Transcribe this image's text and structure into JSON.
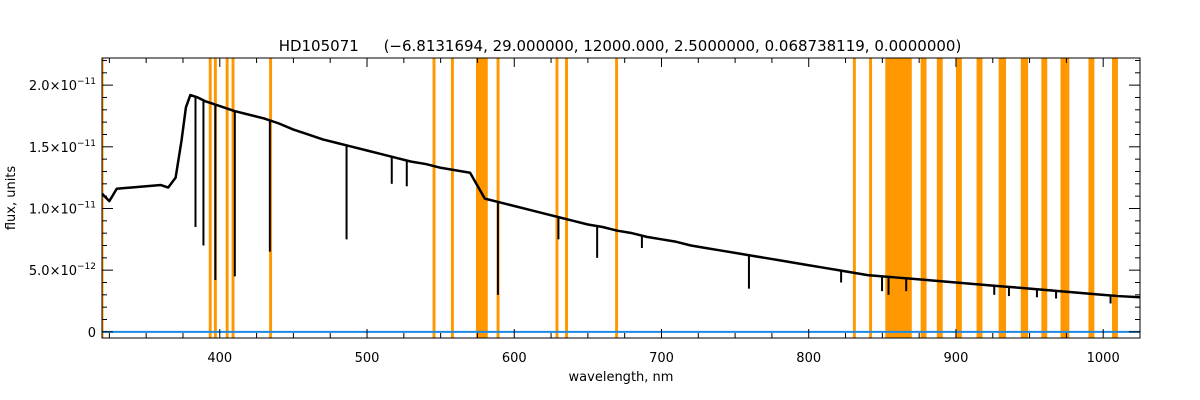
{
  "chart_data": {
    "type": "line",
    "title_star": "HD105071",
    "title_params": "(−6.8131694, 29.000000, 12000.000, 2.5000000, 0.068738119, 0.0000000)",
    "xlabel": "wavelength, nm",
    "ylabel": "flux, units",
    "xlim": [
      320,
      1025
    ],
    "ylim": [
      -5e-13,
      2.22e-11
    ],
    "x_ticks": [
      {
        "value": 400,
        "label": "400"
      },
      {
        "value": 500,
        "label": "500"
      },
      {
        "value": 600,
        "label": "600"
      },
      {
        "value": 700,
        "label": "700"
      },
      {
        "value": 800,
        "label": "800"
      },
      {
        "value": 900,
        "label": "900"
      },
      {
        "value": 1000,
        "label": "1000"
      }
    ],
    "y_ticks": [
      {
        "value": 0,
        "mant": "0",
        "exp": ""
      },
      {
        "value": 5e-12,
        "mant": "5.0×10",
        "exp": "−12"
      },
      {
        "value": 1e-11,
        "mant": "1.0×10",
        "exp": "−11"
      },
      {
        "value": 1.5e-11,
        "mant": "1.5×10",
        "exp": "−11"
      },
      {
        "value": 2e-11,
        "mant": "2.0×10",
        "exp": "−11"
      }
    ],
    "grid": false,
    "colors": {
      "spectrum": "#000000",
      "error": "#1e88e5",
      "mask": "#ff9800"
    },
    "series": [
      {
        "role": "spectrum",
        "points": [
          [
            320,
            1.12e-11
          ],
          [
            325,
            1.06e-11
          ],
          [
            330,
            1.16e-11
          ],
          [
            340,
            1.17e-11
          ],
          [
            350,
            1.18e-11
          ],
          [
            360,
            1.19e-11
          ],
          [
            365,
            1.17e-11
          ],
          [
            370,
            1.25e-11
          ],
          [
            374,
            1.55e-11
          ],
          [
            377,
            1.82e-11
          ],
          [
            380,
            1.92e-11
          ],
          [
            385,
            1.9e-11
          ],
          [
            390,
            1.87e-11
          ],
          [
            400,
            1.83e-11
          ],
          [
            410,
            1.79e-11
          ],
          [
            420,
            1.76e-11
          ],
          [
            430,
            1.73e-11
          ],
          [
            440,
            1.69e-11
          ],
          [
            450,
            1.64e-11
          ],
          [
            460,
            1.6e-11
          ],
          [
            470,
            1.56e-11
          ],
          [
            480,
            1.53e-11
          ],
          [
            490,
            1.5e-11
          ],
          [
            500,
            1.47e-11
          ],
          [
            510,
            1.44e-11
          ],
          [
            520,
            1.41e-11
          ],
          [
            530,
            1.38e-11
          ],
          [
            540,
            1.36e-11
          ],
          [
            550,
            1.33e-11
          ],
          [
            560,
            1.31e-11
          ],
          [
            570,
            1.29e-11
          ],
          [
            580,
            1.08e-11
          ],
          [
            590,
            1.05e-11
          ],
          [
            600,
            1.02e-11
          ],
          [
            610,
            9.9e-12
          ],
          [
            620,
            9.6e-12
          ],
          [
            630,
            9.3e-12
          ],
          [
            640,
            9e-12
          ],
          [
            650,
            8.7e-12
          ],
          [
            660,
            8.5e-12
          ],
          [
            670,
            8.2e-12
          ],
          [
            680,
            8e-12
          ],
          [
            690,
            7.7e-12
          ],
          [
            700,
            7.5e-12
          ],
          [
            710,
            7.3e-12
          ],
          [
            720,
            7e-12
          ],
          [
            730,
            6.8e-12
          ],
          [
            740,
            6.6e-12
          ],
          [
            750,
            6.4e-12
          ],
          [
            760,
            6.2e-12
          ],
          [
            770,
            6e-12
          ],
          [
            780,
            5.8e-12
          ],
          [
            790,
            5.6e-12
          ],
          [
            800,
            5.4e-12
          ],
          [
            810,
            5.2e-12
          ],
          [
            820,
            5e-12
          ],
          [
            830,
            4.8e-12
          ],
          [
            840,
            4.6e-12
          ],
          [
            850,
            4.5e-12
          ],
          [
            860,
            4.4e-12
          ],
          [
            870,
            4.3e-12
          ],
          [
            880,
            4.2e-12
          ],
          [
            890,
            4.1e-12
          ],
          [
            900,
            4e-12
          ],
          [
            910,
            3.9e-12
          ],
          [
            920,
            3.8e-12
          ],
          [
            930,
            3.7e-12
          ],
          [
            940,
            3.6e-12
          ],
          [
            950,
            3.5e-12
          ],
          [
            960,
            3.4e-12
          ],
          [
            970,
            3.3e-12
          ],
          [
            980,
            3.2e-12
          ],
          [
            990,
            3.1e-12
          ],
          [
            1000,
            3e-12
          ],
          [
            1010,
            2.9e-12
          ],
          [
            1025,
            2.8e-12
          ]
        ],
        "absorption_lines": [
          [
            383.5,
            8.5e-12
          ],
          [
            388.9,
            7e-12
          ],
          [
            397.0,
            4.2e-12
          ],
          [
            410.2,
            4.5e-12
          ],
          [
            434.0,
            6.5e-12
          ],
          [
            486.1,
            7.5e-12
          ],
          [
            516.8,
            1.2e-11
          ],
          [
            527.0,
            1.18e-11
          ],
          [
            588.9,
            3e-12
          ],
          [
            630.0,
            7.5e-12
          ],
          [
            656.3,
            6e-12
          ],
          [
            686.7,
            6.8e-12
          ],
          [
            759.4,
            3.5e-12
          ],
          [
            822.0,
            4e-12
          ],
          [
            849.8,
            3.3e-12
          ],
          [
            854.2,
            3e-12
          ],
          [
            866.2,
            3.3e-12
          ],
          [
            926.0,
            3e-12
          ],
          [
            936.0,
            2.9e-12
          ],
          [
            955.0,
            2.8e-12
          ],
          [
            968.0,
            2.7e-12
          ],
          [
            1005.0,
            2.3e-12
          ]
        ]
      },
      {
        "role": "error",
        "points": [
          [
            320,
            0
          ],
          [
            1025,
            0
          ]
        ]
      }
    ],
    "masked_regions": [
      [
        320,
        321
      ],
      [
        392.5,
        394.5
      ],
      [
        396,
        398
      ],
      [
        404,
        406
      ],
      [
        408,
        410
      ],
      [
        433.5,
        435.5
      ],
      [
        544.5,
        546.5
      ],
      [
        557,
        559
      ],
      [
        574,
        582
      ],
      [
        588,
        590
      ],
      [
        628,
        630
      ],
      [
        634.5,
        636.5
      ],
      [
        668.5,
        670.5
      ],
      [
        830,
        832
      ],
      [
        841,
        843
      ],
      [
        852,
        870
      ],
      [
        876,
        880
      ],
      [
        887,
        891
      ],
      [
        900,
        904
      ],
      [
        914,
        918
      ],
      [
        929,
        934
      ],
      [
        944,
        949
      ],
      [
        958,
        962
      ],
      [
        971,
        977
      ],
      [
        990,
        994
      ],
      [
        1006,
        1010
      ]
    ]
  }
}
